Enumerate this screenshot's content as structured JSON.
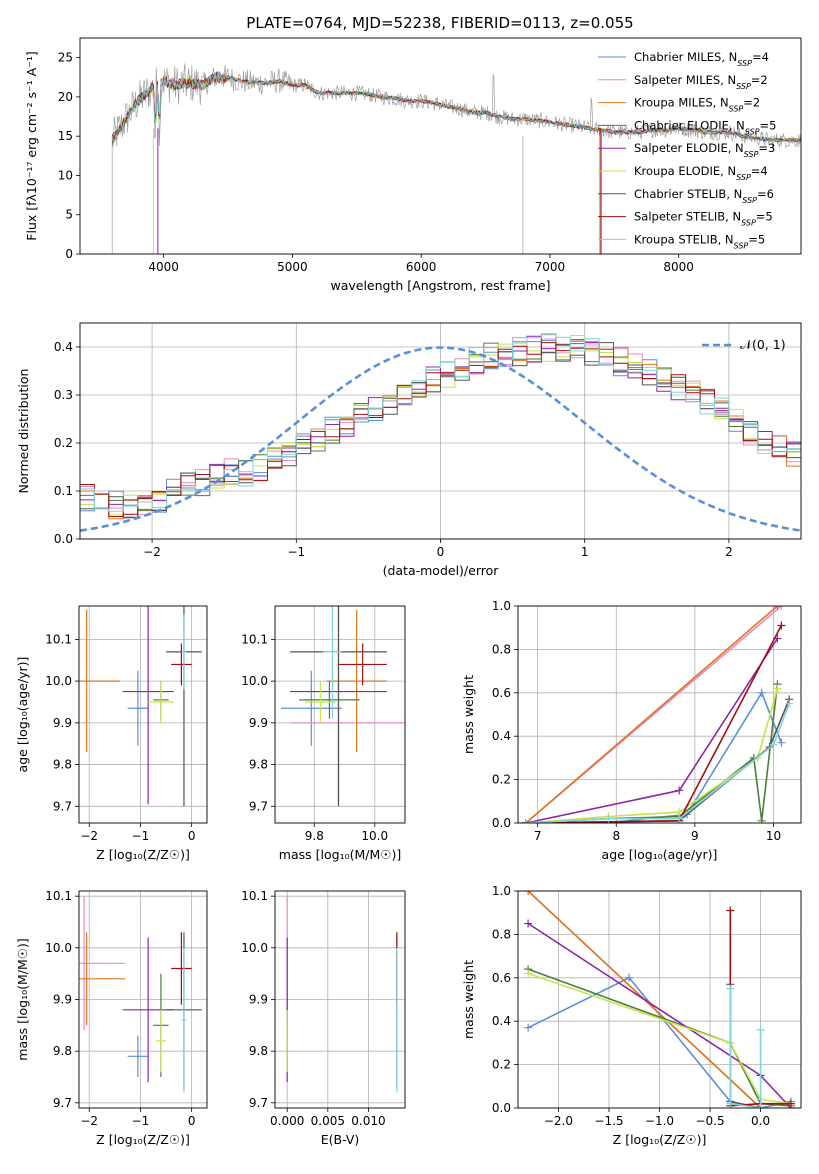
{
  "figure": {
    "title": "PLATE=0764, MJD=52238, FIBERID=0113, z=0.055"
  },
  "colors": {
    "Chabrier MILES": "#5b8fd6",
    "Salpeter MILES": "#e88cc6",
    "Kroupa MILES": "#e0761a",
    "Chabrier ELODIE": "#4d7f3c",
    "Salpeter ELODIE": "#8e24aa",
    "Kroupa ELODIE": "#c7e34c",
    "Chabrier STELIB": "#555555",
    "Salpeter STELIB": "#a30f0f",
    "Kroupa STELIB": "#7fd3e0",
    "data": "#9e9e9e",
    "normal": "#5b8fd6"
  },
  "chart_data": [
    {
      "type": "line",
      "panel": "spectrum",
      "xlabel": "wavelength [Angstrom, rest frame]",
      "ylabel": "Flux [fλ10⁻¹⁷ erg cm⁻² s⁻¹ A⁻¹]",
      "xlim": [
        3350,
        8950
      ],
      "ylim": [
        0,
        27.5
      ],
      "xticks": [
        4000,
        5000,
        6000,
        7000,
        8000
      ],
      "yticks": [
        0,
        5,
        10,
        15,
        20,
        25
      ],
      "grid": false,
      "legend_position": "top-right",
      "legend": [
        {
          "name": "Chabrier MILES",
          "n": "4"
        },
        {
          "name": "Salpeter MILES",
          "n": "2"
        },
        {
          "name": "Kroupa MILES",
          "n": "2"
        },
        {
          "name": "Chabrier ELODIE",
          "n": "5"
        },
        {
          "name": "Salpeter ELODIE",
          "n": "3"
        },
        {
          "name": "Kroupa ELODIE",
          "n": "4"
        },
        {
          "name": "Chabrier STELIB",
          "n": "6"
        },
        {
          "name": "Salpeter STELIB",
          "n": "5"
        },
        {
          "name": "Kroupa STELIB",
          "n": "5"
        }
      ],
      "continuum_x": [
        3600,
        3700,
        3800,
        3900,
        4000,
        4100,
        4200,
        4300,
        4400,
        4500,
        4600,
        4700,
        4800,
        4900,
        5000,
        5100,
        5200,
        5300,
        5400,
        5500,
        5600,
        5700,
        5800,
        5900,
        6000,
        6100,
        6200,
        6300,
        6400,
        6500,
        6600,
        6700,
        6800,
        6900,
        7000,
        7100,
        7200,
        7300,
        7400,
        7500,
        7600,
        7700,
        7800,
        7900,
        8000,
        8100,
        8200,
        8300,
        8400,
        8500,
        8600,
        8700,
        8800,
        8950
      ],
      "continuum_y": [
        14.5,
        17.0,
        19.5,
        21.0,
        22.0,
        21.5,
        21.8,
        21.5,
        22.5,
        22.5,
        22.0,
        21.8,
        21.8,
        22.0,
        21.5,
        21.5,
        20.5,
        20.5,
        20.5,
        20.5,
        20.3,
        20.0,
        19.8,
        19.5,
        19.5,
        19.2,
        18.8,
        18.5,
        18.0,
        18.0,
        17.5,
        17.2,
        17.2,
        17.0,
        16.8,
        16.5,
        16.3,
        16.0,
        15.8,
        15.5,
        15.5,
        15.5,
        15.8,
        15.8,
        16.0,
        15.8,
        15.5,
        15.5,
        15.5,
        15.0,
        14.8,
        14.5,
        14.5,
        14.5
      ]
    },
    {
      "type": "line",
      "panel": "residuals",
      "xlabel": "(data-model)/error",
      "ylabel": "Normed distribution",
      "xlim": [
        -2.5,
        2.5
      ],
      "ylim": [
        0,
        0.45
      ],
      "xticks": [
        -2,
        -1,
        0,
        1,
        2
      ],
      "yticks": [
        0.0,
        0.1,
        0.2,
        0.3,
        0.4
      ],
      "grid": true,
      "legend_position": "top-right",
      "legend": [
        "𝒩(0, 1)"
      ],
      "bin_width": 0.1,
      "reference": "standard normal density",
      "envelope": [
        0.085,
        0.075,
        0.07,
        0.065,
        0.07,
        0.08,
        0.095,
        0.11,
        0.115,
        0.13,
        0.14,
        0.14,
        0.15,
        0.165,
        0.18,
        0.19,
        0.21,
        0.225,
        0.24,
        0.255,
        0.27,
        0.285,
        0.3,
        0.315,
        0.33,
        0.345,
        0.36,
        0.37,
        0.38,
        0.39,
        0.39,
        0.395,
        0.4,
        0.4,
        0.398,
        0.39,
        0.385,
        0.37,
        0.36,
        0.345,
        0.33,
        0.315,
        0.3,
        0.285,
        0.265,
        0.245,
        0.225,
        0.205,
        0.19,
        0.175,
        0.16,
        0.145,
        0.13,
        0.115,
        0.1,
        0.09,
        0.08,
        0.07,
        0.06,
        0.05,
        0.045,
        0.04,
        0.035,
        0.035,
        0.03,
        0.03,
        0.03,
        0.035,
        0.035,
        0.03
      ]
    },
    {
      "type": "scatter",
      "panel": "age-vs-Z",
      "xlabel": "Z [log₁₀(Z/Z☉)]",
      "ylabel": "age  [log₁₀(age/yr)]",
      "xlim": [
        -2.2,
        0.3
      ],
      "ylim": [
        9.66,
        10.18
      ],
      "xticks": [
        -2,
        -1,
        0
      ],
      "yticks": [
        9.7,
        9.8,
        9.9,
        10.0,
        10.1
      ],
      "grid": true,
      "points": [
        {
          "series": "Chabrier MILES",
          "x": -1.05,
          "xerr": 0.2,
          "y": 9.935,
          "yerr": 0.09
        },
        {
          "series": "Salpeter MILES",
          "x": -2.1,
          "xerr": 0.0,
          "y": 9.9,
          "yerr": 0.0
        },
        {
          "series": "Kroupa MILES",
          "x": -2.05,
          "xerr": 0.65,
          "y": 10.0,
          "yerr": 0.17
        },
        {
          "series": "Chabrier ELODIE",
          "x": -0.6,
          "xerr": 0.15,
          "y": 9.955,
          "yerr": 0.045
        },
        {
          "series": "Salpeter ELODIE",
          "x": -0.85,
          "xerr": 0.5,
          "y": 9.975,
          "yerr": 0.27
        },
        {
          "series": "Kroupa ELODIE",
          "x": -0.6,
          "xerr": 0.25,
          "y": 9.95,
          "yerr": 0.05
        },
        {
          "series": "Chabrier STELIB",
          "x": -0.15,
          "xerr": 0.35,
          "y": 10.07,
          "yerr": 0.37
        },
        {
          "series": "Salpeter STELIB",
          "x": -0.2,
          "xerr": 0.2,
          "y": 10.04,
          "yerr": 0.05
        },
        {
          "series": "Kroupa STELIB",
          "x": -0.15,
          "xerr": 0.05,
          "y": 10.07,
          "yerr": 0.09
        }
      ]
    },
    {
      "type": "scatter",
      "panel": "age-vs-mass",
      "xlabel": "mass [log₁₀(M/M☉)]",
      "ylabel": "",
      "xlim": [
        9.67,
        10.1
      ],
      "ylim": [
        9.66,
        10.18
      ],
      "xticks": [
        9.8,
        10.0
      ],
      "yticks": [
        9.7,
        9.8,
        9.9,
        10.0,
        10.1
      ],
      "grid": true,
      "points": [
        {
          "series": "Chabrier MILES",
          "x": 9.79,
          "xerr": 0.1,
          "y": 9.935,
          "yerr": 0.09
        },
        {
          "series": "Salpeter MILES",
          "x": 9.97,
          "xerr": 0.25,
          "y": 9.9,
          "yerr": 0.0
        },
        {
          "series": "Kroupa MILES",
          "x": 9.94,
          "xerr": 0.1,
          "y": 10.0,
          "yerr": 0.17
        },
        {
          "series": "Chabrier ELODIE",
          "x": 9.85,
          "xerr": 0.1,
          "y": 9.955,
          "yerr": 0.045
        },
        {
          "series": "Salpeter ELODIE",
          "x": 9.88,
          "xerr": 0.16,
          "y": 9.975,
          "yerr": 0.27
        },
        {
          "series": "Kroupa ELODIE",
          "x": 9.82,
          "xerr": 0.05,
          "y": 9.95,
          "yerr": 0.05
        },
        {
          "series": "Chabrier STELIB",
          "x": 9.88,
          "xerr": 0.16,
          "y": 10.07,
          "yerr": 0.37
        },
        {
          "series": "Salpeter STELIB",
          "x": 9.96,
          "xerr": 0.08,
          "y": 10.04,
          "yerr": 0.05
        },
        {
          "series": "Kroupa STELIB",
          "x": 9.86,
          "xerr": 0.03,
          "y": 10.07,
          "yerr": 0.16
        }
      ]
    },
    {
      "type": "line",
      "panel": "weight-vs-age",
      "xlabel": "age  [log₁₀(age/yr)]",
      "ylabel": "mass weight",
      "xlim": [
        6.75,
        10.35
      ],
      "ylim": [
        0,
        1
      ],
      "xticks": [
        7,
        8,
        9,
        10
      ],
      "yticks": [
        0.0,
        0.2,
        0.4,
        0.6,
        0.8,
        1.0
      ],
      "grid": true,
      "series": [
        {
          "name": "Chabrier MILES",
          "x": [
            6.85,
            7.9,
            8.9,
            9.85,
            10.1
          ],
          "y": [
            0.0,
            0.0,
            0.04,
            0.6,
            0.37
          ]
        },
        {
          "name": "Salpeter MILES",
          "x": [
            6.85,
            10.1
          ],
          "y": [
            0.0,
            1.0
          ]
        },
        {
          "name": "Kroupa MILES",
          "x": [
            6.85,
            10.05
          ],
          "y": [
            0.0,
            1.0
          ]
        },
        {
          "name": "Chabrier ELODIE",
          "x": [
            6.85,
            7.9,
            8.8,
            9.75,
            9.85,
            10.05
          ],
          "y": [
            0.0,
            0.02,
            0.03,
            0.3,
            0.01,
            0.64
          ]
        },
        {
          "name": "Salpeter ELODIE",
          "x": [
            6.85,
            8.8,
            10.05
          ],
          "y": [
            0.0,
            0.15,
            0.85
          ]
        },
        {
          "name": "Kroupa ELODIE",
          "x": [
            6.85,
            7.9,
            8.8,
            9.8,
            10.05
          ],
          "y": [
            0.0,
            0.03,
            0.05,
            0.3,
            0.62
          ]
        },
        {
          "name": "Chabrier STELIB",
          "x": [
            6.85,
            8.8,
            9.95,
            10.2
          ],
          "y": [
            0.0,
            0.01,
            0.35,
            0.57
          ]
        },
        {
          "name": "Salpeter STELIB",
          "x": [
            6.85,
            8.8,
            10.1
          ],
          "y": [
            0.0,
            0.01,
            0.91
          ]
        },
        {
          "name": "Kroupa STELIB",
          "x": [
            6.85,
            7.9,
            8.8,
            10.0,
            10.2
          ],
          "y": [
            0.0,
            0.02,
            0.02,
            0.36,
            0.55
          ]
        }
      ]
    },
    {
      "type": "scatter",
      "panel": "mass-vs-Z",
      "xlabel": "Z [log₁₀(Z/Z☉)]",
      "ylabel": "mass [log₁₀(M/M☉)]",
      "xlim": [
        -2.2,
        0.3
      ],
      "ylim": [
        9.69,
        10.11
      ],
      "xticks": [
        -2,
        -1,
        0
      ],
      "yticks": [
        9.7,
        9.8,
        9.9,
        10.0,
        10.1
      ],
      "grid": true,
      "points": [
        {
          "series": "Chabrier MILES",
          "x": -1.05,
          "xerr": 0.2,
          "y": 9.79,
          "yerr": 0.04
        },
        {
          "series": "Salpeter MILES",
          "x": -2.1,
          "xerr": 0.8,
          "y": 9.97,
          "yerr": 0.13
        },
        {
          "series": "Kroupa MILES",
          "x": -2.05,
          "xerr": 0.75,
          "y": 9.94,
          "yerr": 0.09
        },
        {
          "series": "Chabrier ELODIE",
          "x": -0.6,
          "xerr": 0.15,
          "y": 9.85,
          "yerr": 0.1
        },
        {
          "series": "Salpeter ELODIE",
          "x": -0.85,
          "xerr": 0.5,
          "y": 9.88,
          "yerr": 0.14
        },
        {
          "series": "Kroupa ELODIE",
          "x": -0.6,
          "xerr": 0.1,
          "y": 9.82,
          "yerr": 0.06
        },
        {
          "series": "Chabrier STELIB",
          "x": -0.15,
          "xerr": 0.35,
          "y": 9.88,
          "yerr": 0.15
        },
        {
          "series": "Salpeter STELIB",
          "x": -0.2,
          "xerr": 0.2,
          "y": 9.96,
          "yerr": 0.07
        },
        {
          "series": "Kroupa STELIB",
          "x": -0.15,
          "xerr": 0.05,
          "y": 9.86,
          "yerr": 0.14
        }
      ]
    },
    {
      "type": "scatter",
      "panel": "mass-vs-EBV",
      "xlabel": "E(B-V)",
      "ylabel": "",
      "xlim": [
        -0.0015,
        0.0145
      ],
      "ylim": [
        9.69,
        10.11
      ],
      "xticks": [
        0.0,
        0.005,
        0.01
      ],
      "xtick_labels": [
        "0.000",
        "0.005",
        "0.010"
      ],
      "yticks": [
        9.7,
        9.8,
        9.9,
        10.0,
        10.1
      ],
      "grid": true,
      "points": [
        {
          "series": "Salpeter MILES",
          "x": 0.0,
          "y": 9.97,
          "yerr": 0.13
        },
        {
          "series": "Salpeter ELODIE",
          "x": 0.0,
          "y": 9.88,
          "yerr": 0.14
        },
        {
          "series": "Kroupa ELODIE",
          "x": 0.0,
          "y": 9.82,
          "yerr": 0.06
        },
        {
          "series": "Chabrier STELIB",
          "x": 0.0135,
          "y": 9.88,
          "yerr": 0.15
        },
        {
          "series": "Salpeter STELIB",
          "x": 0.0135,
          "y": 9.96,
          "yerr": 0.07
        },
        {
          "series": "Kroupa STELIB",
          "x": 0.0135,
          "y": 9.86,
          "yerr": 0.14
        }
      ]
    },
    {
      "type": "line",
      "panel": "weight-vs-Z",
      "xlabel": "Z [log₁₀(Z/Z☉)]",
      "ylabel": "mass weight",
      "xlim": [
        -2.4,
        0.4
      ],
      "ylim": [
        0,
        1
      ],
      "xticks": [
        -2.0,
        -1.5,
        -1.0,
        -0.5,
        0.0
      ],
      "yticks": [
        0.0,
        0.2,
        0.4,
        0.6,
        0.8,
        1.0
      ],
      "grid": true,
      "series": [
        {
          "name": "Chabrier MILES",
          "x": [
            -2.3,
            -1.3,
            -0.3,
            0.0,
            0.3
          ],
          "y": [
            0.37,
            0.6,
            0.03,
            0.0,
            0.03
          ]
        },
        {
          "name": "Salpeter MILES",
          "x": [
            -2.3,
            0.0
          ],
          "y": [
            1.0,
            0.0
          ]
        },
        {
          "name": "Kroupa MILES",
          "x": [
            -2.3,
            0.0
          ],
          "y": [
            1.0,
            0.0
          ]
        },
        {
          "name": "Chabrier ELODIE",
          "x": [
            -2.3,
            -0.3,
            0.0,
            0.3
          ],
          "y": [
            0.64,
            0.3,
            0.02,
            0.01
          ]
        },
        {
          "name": "Salpeter ELODIE",
          "x": [
            -2.3,
            0.0,
            0.3
          ],
          "y": [
            0.85,
            0.15,
            0.0
          ]
        },
        {
          "name": "Kroupa ELODIE",
          "x": [
            -2.3,
            -0.3,
            0.0,
            0.3
          ],
          "y": [
            0.62,
            0.3,
            0.04,
            0.02
          ]
        },
        {
          "name": "Chabrier STELIB",
          "x": [
            -0.3,
            -0.3,
            0.0
          ],
          "y": [
            0.57,
            0.03,
            0.0
          ]
        },
        {
          "name": "Salpeter STELIB",
          "x": [
            -0.3,
            -0.3,
            0.0,
            0.3
          ],
          "y": [
            0.91,
            0.01,
            0.02,
            0.02
          ]
        },
        {
          "name": "Kroupa STELIB",
          "x": [
            -0.3,
            -0.3,
            0.0,
            0.0
          ],
          "y": [
            0.55,
            0.02,
            0.0,
            0.36
          ]
        }
      ]
    }
  ]
}
